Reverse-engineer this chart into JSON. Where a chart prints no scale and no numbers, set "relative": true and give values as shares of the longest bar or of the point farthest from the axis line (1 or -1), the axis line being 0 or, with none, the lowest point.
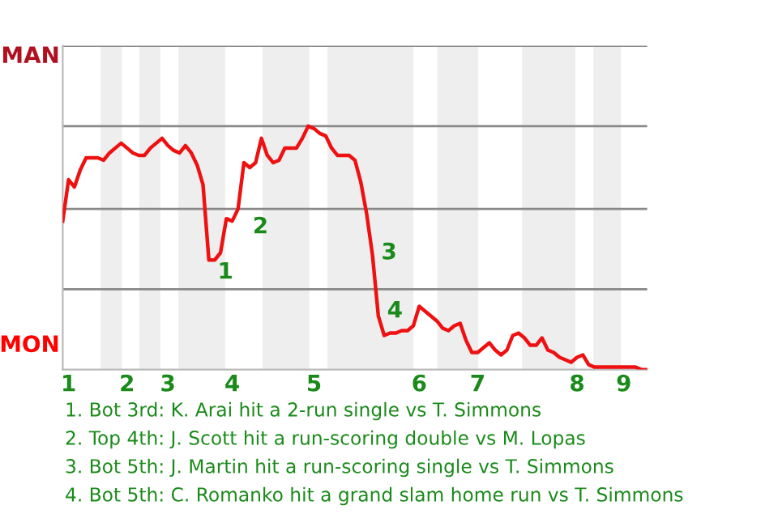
{
  "chart_data": {
    "type": "line",
    "relative": true,
    "categories": [
      null,
      "1",
      null,
      null,
      null,
      null,
      null,
      null,
      null,
      null,
      null,
      "2",
      null,
      null,
      null,
      null,
      null,
      null,
      "3",
      null,
      null,
      null,
      null,
      null,
      null,
      null,
      null,
      null,
      null,
      "4",
      null,
      null,
      null,
      null,
      null,
      null,
      null,
      null,
      null,
      null,
      null,
      null,
      null,
      "5",
      null,
      null,
      null,
      null,
      null,
      null,
      null,
      null,
      null,
      null,
      null,
      null,
      null,
      null,
      null,
      null,
      null,
      "6",
      null,
      null,
      null,
      null,
      null,
      null,
      null,
      null,
      null,
      "7",
      null,
      null,
      null,
      null,
      null,
      null,
      null,
      null,
      null,
      null,
      null,
      null,
      null,
      null,
      null,
      null,
      "8",
      null,
      null,
      null,
      null,
      null,
      null,
      null,
      "9",
      null,
      null,
      null,
      null
    ],
    "series": [
      {
        "color": "#ee1111",
        "values": [
          0.61,
          0.78,
          0.75,
          0.82,
          0.87,
          0.87,
          0.87,
          0.86,
          0.89,
          0.91,
          0.93,
          0.91,
          0.89,
          0.88,
          0.88,
          0.91,
          0.93,
          0.95,
          0.92,
          0.9,
          0.89,
          0.92,
          0.89,
          0.84,
          0.76,
          0.45,
          0.45,
          0.48,
          0.62,
          0.61,
          0.66,
          0.85,
          0.83,
          0.85,
          0.95,
          0.88,
          0.85,
          0.86,
          0.91,
          0.91,
          0.91,
          0.95,
          1,
          0.99,
          0.97,
          0.96,
          0.91,
          0.88,
          0.88,
          0.88,
          0.86,
          0.77,
          0.64,
          0.47,
          0.22,
          0.14,
          0.15,
          0.15,
          0.16,
          0.16,
          0.18,
          0.26,
          0.24,
          0.22,
          0.2,
          0.17,
          0.16,
          0.18,
          0.19,
          0.12,
          0.07,
          0.07,
          0.09,
          0.11,
          0.08,
          0.06,
          0.08,
          0.14,
          0.15,
          0.13,
          0.1,
          0.1,
          0.13,
          0.08,
          0.07,
          0.05,
          0.04,
          0.03,
          0.05,
          0.06,
          0.02,
          0.01,
          0.01,
          0.01,
          0.01,
          0.01,
          0.01,
          0.01,
          0.01,
          0,
          0
        ]
      }
    ],
    "legend": false,
    "marker": "none",
    "line_style": "solid",
    "ref_lines": [
      {
        "axis": "y",
        "value": 0.33,
        "color": "#888888"
      },
      {
        "axis": "y",
        "value": 0.66,
        "color": "#888888"
      },
      {
        "axis": "y",
        "value": 1.0,
        "color": "#888888"
      },
      {
        "axis": "y",
        "value": 1.33,
        "color": "#888888"
      }
    ],
    "annotations": [
      "MAN",
      "MON",
      "1",
      "2",
      "3",
      "4",
      "1. Bot 3rd: K. Arai hit a 2-run single vs T. Simmons",
      "2. Top 4th: J. Scott hit a run-scoring double vs M. Lopas",
      "3. Bot 5th: J. Martin hit a run-scoring single vs T. Simmons",
      "4. Bot 5th: C. Romanko hit a grand slam home run vs T. Simmons"
    ]
  }
}
